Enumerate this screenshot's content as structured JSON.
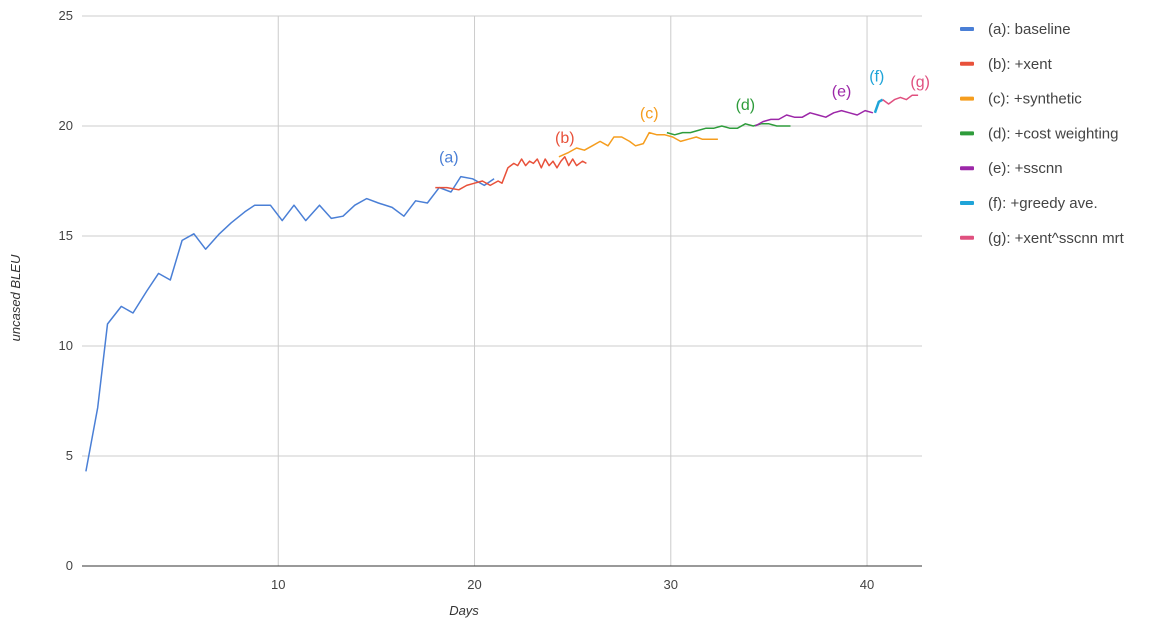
{
  "chart_data": {
    "type": "line",
    "title": "",
    "xlabel": "Days",
    "ylabel": "uncased BLEU",
    "xlim": [
      0,
      42.8
    ],
    "ylim": [
      0,
      25
    ],
    "xticks": [
      10,
      20,
      30,
      40
    ],
    "yticks": [
      0,
      5,
      10,
      15,
      20,
      25
    ],
    "grid": true,
    "legend_position": "right",
    "series": [
      {
        "name": "(a): baseline",
        "label": "(a)",
        "color": "#4a7fd6",
        "points": [
          [
            0.2,
            4.3
          ],
          [
            0.8,
            7.2
          ],
          [
            1.3,
            11.0
          ],
          [
            2.0,
            11.8
          ],
          [
            2.6,
            11.5
          ],
          [
            3.3,
            12.5
          ],
          [
            3.9,
            13.3
          ],
          [
            4.5,
            13.0
          ],
          [
            5.1,
            14.8
          ],
          [
            5.7,
            15.1
          ],
          [
            6.3,
            14.4
          ],
          [
            7.0,
            15.1
          ],
          [
            7.6,
            15.6
          ],
          [
            8.3,
            16.1
          ],
          [
            8.8,
            16.4
          ],
          [
            9.6,
            16.4
          ],
          [
            10.2,
            15.7
          ],
          [
            10.8,
            16.4
          ],
          [
            11.4,
            15.7
          ],
          [
            12.1,
            16.4
          ],
          [
            12.7,
            15.8
          ],
          [
            13.3,
            15.9
          ],
          [
            13.9,
            16.4
          ],
          [
            14.5,
            16.7
          ],
          [
            15.1,
            16.5
          ],
          [
            15.8,
            16.3
          ],
          [
            16.4,
            15.9
          ],
          [
            17.0,
            16.6
          ],
          [
            17.6,
            16.5
          ],
          [
            18.2,
            17.2
          ],
          [
            18.8,
            17.0
          ],
          [
            19.3,
            17.7
          ],
          [
            19.9,
            17.6
          ],
          [
            20.5,
            17.3
          ],
          [
            21.0,
            17.6
          ]
        ]
      },
      {
        "name": "(b): +xent",
        "label": "(b)",
        "color": "#e8513a",
        "points": [
          [
            18.0,
            17.2
          ],
          [
            18.6,
            17.2
          ],
          [
            19.2,
            17.1
          ],
          [
            19.6,
            17.3
          ],
          [
            20.0,
            17.4
          ],
          [
            20.4,
            17.5
          ],
          [
            20.8,
            17.3
          ],
          [
            21.2,
            17.5
          ],
          [
            21.4,
            17.4
          ],
          [
            21.7,
            18.1
          ],
          [
            22.0,
            18.3
          ],
          [
            22.2,
            18.2
          ],
          [
            22.4,
            18.5
          ],
          [
            22.6,
            18.2
          ],
          [
            22.8,
            18.4
          ],
          [
            23.0,
            18.3
          ],
          [
            23.2,
            18.5
          ],
          [
            23.4,
            18.1
          ],
          [
            23.6,
            18.5
          ],
          [
            23.8,
            18.2
          ],
          [
            24.0,
            18.4
          ],
          [
            24.2,
            18.1
          ],
          [
            24.4,
            18.4
          ],
          [
            24.6,
            18.6
          ],
          [
            24.8,
            18.2
          ],
          [
            25.0,
            18.5
          ],
          [
            25.2,
            18.2
          ],
          [
            25.5,
            18.4
          ],
          [
            25.7,
            18.3
          ]
        ]
      },
      {
        "name": "(c): +synthetic",
        "label": "(c)",
        "color": "#f59d1e",
        "points": [
          [
            24.3,
            18.6
          ],
          [
            24.8,
            18.8
          ],
          [
            25.2,
            19.0
          ],
          [
            25.6,
            18.9
          ],
          [
            26.0,
            19.1
          ],
          [
            26.4,
            19.3
          ],
          [
            26.8,
            19.1
          ],
          [
            27.1,
            19.5
          ],
          [
            27.5,
            19.5
          ],
          [
            27.9,
            19.3
          ],
          [
            28.2,
            19.1
          ],
          [
            28.6,
            19.2
          ],
          [
            28.9,
            19.7
          ],
          [
            29.3,
            19.6
          ],
          [
            29.7,
            19.6
          ],
          [
            30.1,
            19.5
          ],
          [
            30.5,
            19.3
          ],
          [
            30.9,
            19.4
          ],
          [
            31.3,
            19.5
          ],
          [
            31.6,
            19.4
          ],
          [
            32.0,
            19.4
          ],
          [
            32.4,
            19.4
          ]
        ]
      },
      {
        "name": "(d): +cost weighting",
        "label": "(d)",
        "color": "#2e9c3b",
        "points": [
          [
            29.8,
            19.7
          ],
          [
            30.2,
            19.6
          ],
          [
            30.6,
            19.7
          ],
          [
            31.0,
            19.7
          ],
          [
            31.4,
            19.8
          ],
          [
            31.8,
            19.9
          ],
          [
            32.2,
            19.9
          ],
          [
            32.6,
            20.0
          ],
          [
            33.0,
            19.9
          ],
          [
            33.4,
            19.9
          ],
          [
            33.8,
            20.1
          ],
          [
            34.2,
            20.0
          ],
          [
            34.6,
            20.1
          ],
          [
            35.0,
            20.1
          ],
          [
            35.4,
            20.0
          ],
          [
            35.8,
            20.0
          ],
          [
            36.1,
            20.0
          ]
        ]
      },
      {
        "name": "(e): +sscnn",
        "label": "(e)",
        "color": "#9c27a8",
        "points": [
          [
            34.3,
            20.0
          ],
          [
            34.7,
            20.2
          ],
          [
            35.1,
            20.3
          ],
          [
            35.5,
            20.3
          ],
          [
            35.9,
            20.5
          ],
          [
            36.3,
            20.4
          ],
          [
            36.7,
            20.4
          ],
          [
            37.1,
            20.6
          ],
          [
            37.5,
            20.5
          ],
          [
            37.9,
            20.4
          ],
          [
            38.3,
            20.6
          ],
          [
            38.7,
            20.7
          ],
          [
            39.1,
            20.6
          ],
          [
            39.5,
            20.5
          ],
          [
            39.9,
            20.7
          ],
          [
            40.3,
            20.6
          ]
        ]
      },
      {
        "name": "(f): +greedy ave.",
        "label": "(f)",
        "color": "#1fa4d8",
        "points": [
          [
            40.4,
            20.6
          ],
          [
            40.6,
            21.1
          ],
          [
            40.8,
            21.2
          ]
        ]
      },
      {
        "name": "(g): +xent^sscnn mrt",
        "label": "(g)",
        "color": "#e0507f",
        "points": [
          [
            40.8,
            21.2
          ],
          [
            41.1,
            21.0
          ],
          [
            41.4,
            21.2
          ],
          [
            41.7,
            21.3
          ],
          [
            42.0,
            21.2
          ],
          [
            42.3,
            21.4
          ],
          [
            42.6,
            21.4
          ]
        ]
      }
    ]
  }
}
